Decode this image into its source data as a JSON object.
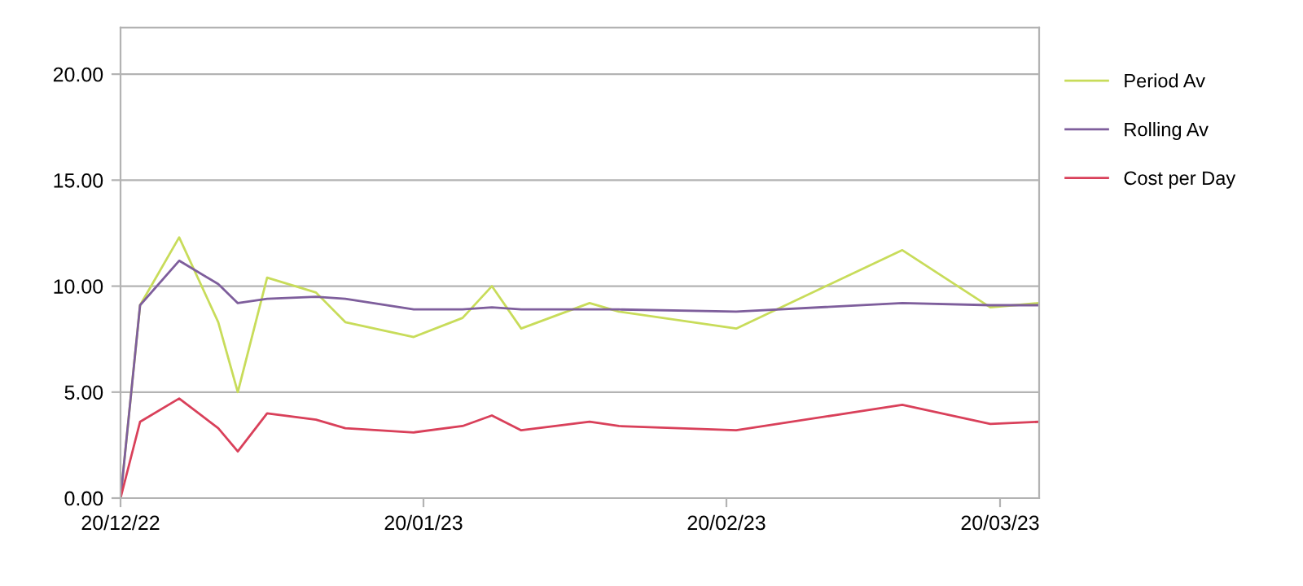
{
  "chart_data": {
    "type": "line",
    "x": [
      "2022-12-20",
      "2022-12-22",
      "2022-12-26",
      "2022-12-30",
      "2023-01-01",
      "2023-01-04",
      "2023-01-09",
      "2023-01-12",
      "2023-01-19",
      "2023-01-24",
      "2023-01-27",
      "2023-01-30",
      "2023-02-06",
      "2023-02-09",
      "2023-02-21",
      "2023-03-10",
      "2023-03-19",
      "2023-03-24"
    ],
    "series": [
      {
        "name": "Period Av",
        "color": "#c8dc5a",
        "values": [
          0,
          9.1,
          12.3,
          8.3,
          5.0,
          10.4,
          9.7,
          8.3,
          7.6,
          8.5,
          10.0,
          8.0,
          9.2,
          8.8,
          8.0,
          11.7,
          9.0,
          9.2
        ]
      },
      {
        "name": "Rolling Av",
        "color": "#7e5e9c",
        "values": [
          0,
          9.1,
          11.2,
          10.1,
          9.2,
          9.4,
          9.5,
          9.4,
          8.9,
          8.9,
          9.0,
          8.9,
          8.9,
          8.9,
          8.8,
          9.2,
          9.1,
          9.1
        ]
      },
      {
        "name": "Cost per Day",
        "color": "#d9405a",
        "values": [
          0,
          3.6,
          4.7,
          3.3,
          2.2,
          4.0,
          3.7,
          3.3,
          3.1,
          3.4,
          3.9,
          3.2,
          3.6,
          3.4,
          3.2,
          4.4,
          3.5,
          3.6
        ]
      }
    ],
    "xlim": [
      "2022-12-20",
      "2023-03-24"
    ],
    "xticks": [
      {
        "value": "2022-12-20",
        "label": "20/12/22"
      },
      {
        "value": "2023-01-20",
        "label": "20/01/23"
      },
      {
        "value": "2023-02-20",
        "label": "20/02/23"
      },
      {
        "value": "2023-03-20",
        "label": "20/03/23"
      }
    ],
    "ylim": [
      0,
      22.2
    ],
    "yticks": [
      {
        "value": 0,
        "label": "0.00"
      },
      {
        "value": 5,
        "label": "5.00"
      },
      {
        "value": 10,
        "label": "10.00"
      },
      {
        "value": 15,
        "label": "15.00"
      },
      {
        "value": 20,
        "label": "20.00"
      }
    ],
    "grid": "y",
    "legend": "right",
    "marker": "none",
    "line_style": "solid"
  }
}
